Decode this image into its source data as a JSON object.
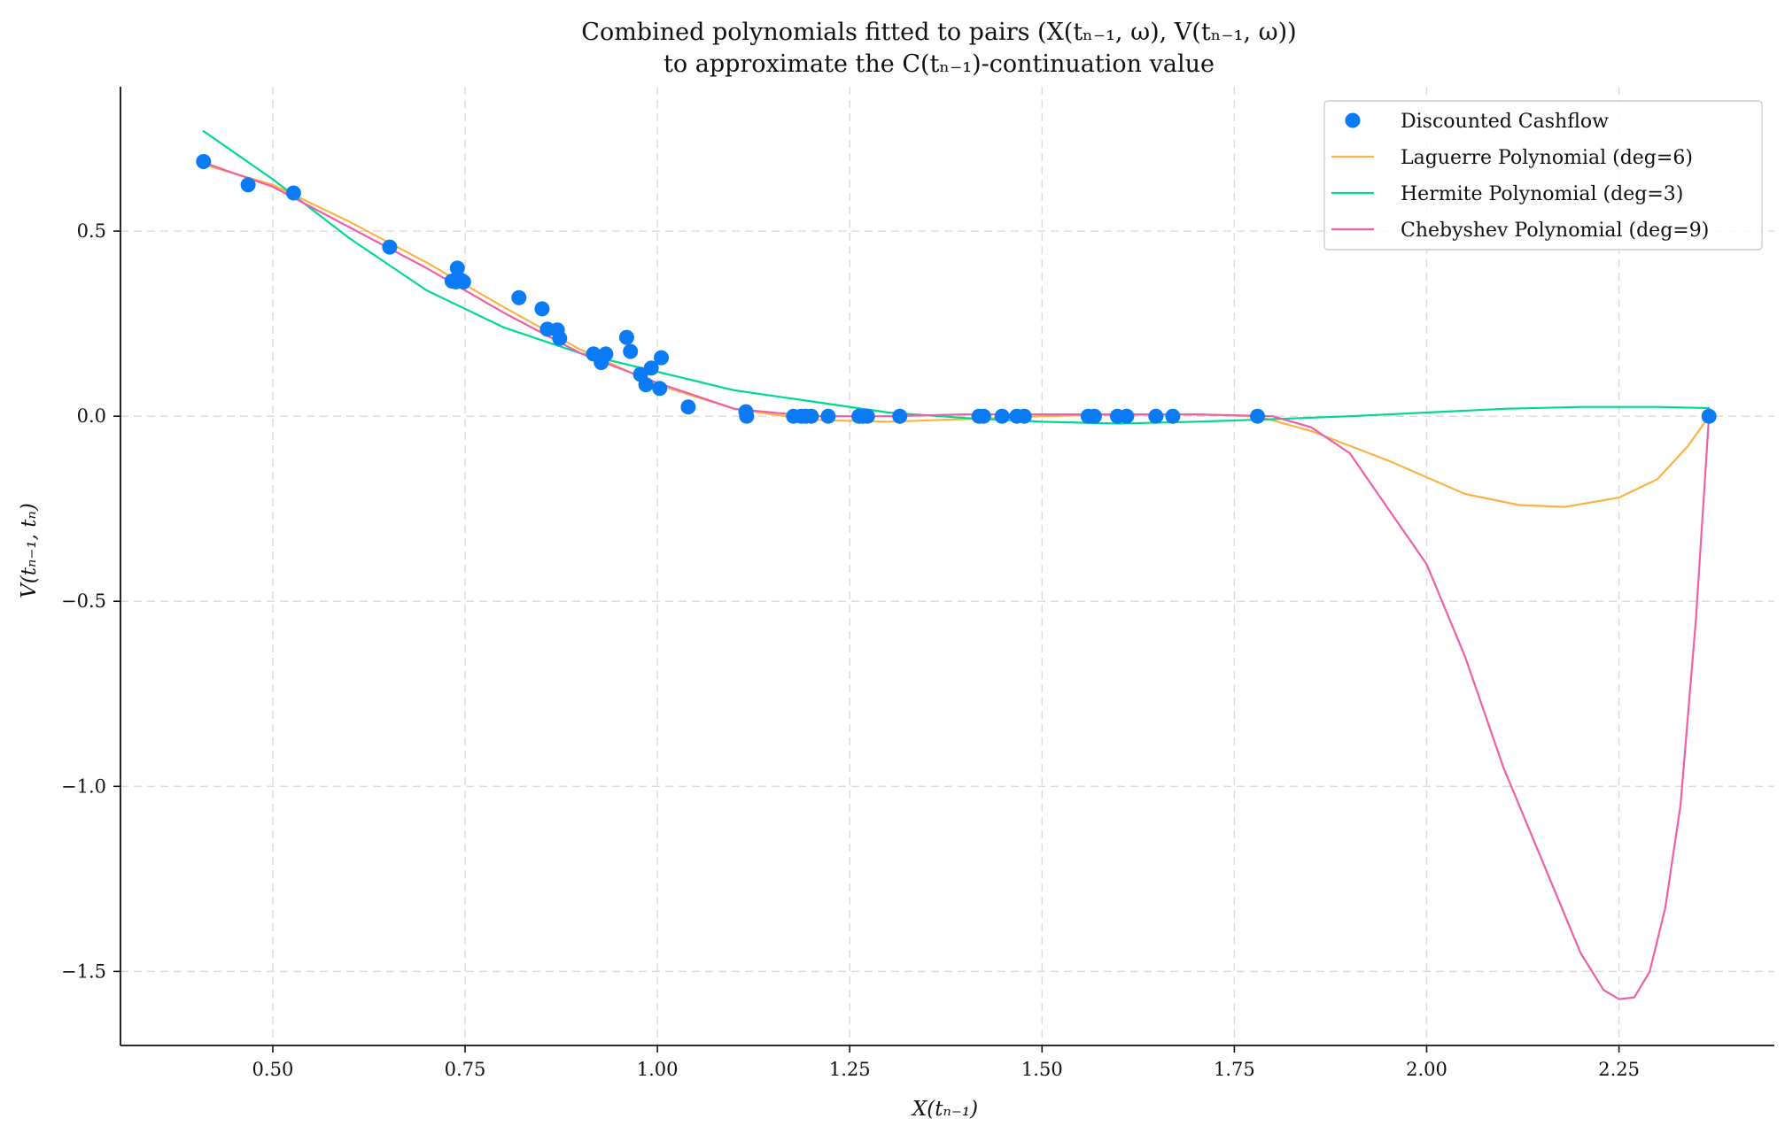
{
  "chart_data": {
    "type": "line",
    "title_lines": [
      "Combined polynomials fitted to pairs (X(tₙ₋₁, ω), V(tₙ₋₁, ω))",
      "to approximate the C(tₙ₋₁)-continuation value"
    ],
    "xlabel": "X(tₙ₋₁)",
    "ylabel": "V(tₙ₋₁, tₙ)",
    "xlim": [
      0.302,
      2.452
    ],
    "ylim": [
      -1.7,
      0.89
    ],
    "x_ticks": [
      0.5,
      0.75,
      1.0,
      1.25,
      1.5,
      1.75,
      2.0,
      2.25
    ],
    "x_tick_labels": [
      "0.50",
      "0.75",
      "1.00",
      "1.25",
      "1.50",
      "1.75",
      "2.00",
      "2.25"
    ],
    "y_ticks": [
      0.5,
      0.0,
      -0.5,
      -1.0,
      -1.5
    ],
    "y_tick_labels": [
      "0.5",
      "0.0",
      "−0.5",
      "−1.0",
      "−1.5"
    ],
    "grid": true,
    "legend_position": "top-right",
    "scatter": {
      "name": "Discounted Cashflow",
      "color": "#0a7bf5",
      "x": [
        0.41,
        0.468,
        0.527,
        0.652,
        0.733,
        0.738,
        0.74,
        0.745,
        0.748,
        0.82,
        0.85,
        0.857,
        0.87,
        0.873,
        0.917,
        0.927,
        0.933,
        0.96,
        0.965,
        0.978,
        0.985,
        0.992,
        1.003,
        1.005,
        1.04,
        1.115,
        1.116,
        1.177,
        1.187,
        1.193,
        1.2,
        1.222,
        1.262,
        1.267,
        1.273,
        1.315,
        1.418,
        1.424,
        1.448,
        1.467,
        1.477,
        1.56,
        1.568,
        1.598,
        1.61,
        1.648,
        1.67,
        1.78,
        2.367
      ],
      "y": [
        0.688,
        0.625,
        0.603,
        0.457,
        0.365,
        0.363,
        0.4,
        0.367,
        0.363,
        0.32,
        0.29,
        0.235,
        0.233,
        0.21,
        0.168,
        0.145,
        0.168,
        0.213,
        0.175,
        0.113,
        0.085,
        0.13,
        0.075,
        0.158,
        0.025,
        0.012,
        0.0,
        0.0,
        0.0,
        0.0,
        0.0,
        0.0,
        0.0,
        0.0,
        0.0,
        0.0,
        0.0,
        0.0,
        0.0,
        0.0,
        0.0,
        0.0,
        0.0,
        0.0,
        0.0,
        0.0,
        0.0,
        0.0,
        0.0
      ]
    },
    "series": [
      {
        "name": "Laguerre Polynomial (deg=6)",
        "color": "#fbb246",
        "x": [
          0.41,
          0.5,
          0.6,
          0.7,
          0.8,
          0.9,
          1.0,
          1.1,
          1.2,
          1.3,
          1.4,
          1.5,
          1.6,
          1.7,
          1.78,
          1.85,
          1.95,
          2.05,
          2.12,
          2.18,
          2.25,
          2.3,
          2.34,
          2.367
        ],
        "y": [
          0.68,
          0.625,
          0.525,
          0.415,
          0.295,
          0.18,
          0.085,
          0.02,
          -0.01,
          -0.015,
          -0.008,
          0.0,
          0.005,
          0.005,
          0.0,
          -0.04,
          -0.12,
          -0.21,
          -0.24,
          -0.245,
          -0.22,
          -0.17,
          -0.08,
          0.0
        ]
      },
      {
        "name": "Hermite Polynomial (deg=3)",
        "color": "#00d88f",
        "x": [
          0.41,
          0.5,
          0.6,
          0.7,
          0.8,
          0.9,
          1.0,
          1.1,
          1.2,
          1.3,
          1.4,
          1.5,
          1.6,
          1.7,
          1.8,
          1.9,
          2.0,
          2.1,
          2.2,
          2.3,
          2.367
        ],
        "y": [
          0.77,
          0.64,
          0.48,
          0.34,
          0.24,
          0.17,
          0.12,
          0.07,
          0.04,
          0.01,
          -0.005,
          -0.015,
          -0.02,
          -0.015,
          -0.008,
          0.0,
          0.01,
          0.02,
          0.025,
          0.025,
          0.022
        ]
      },
      {
        "name": "Chebyshev Polynomial (deg=9)",
        "color": "#ef5fa8",
        "x": [
          0.41,
          0.5,
          0.6,
          0.7,
          0.8,
          0.9,
          1.0,
          1.1,
          1.2,
          1.3,
          1.4,
          1.5,
          1.6,
          1.7,
          1.8,
          1.85,
          1.9,
          1.95,
          2.0,
          2.05,
          2.1,
          2.15,
          2.2,
          2.23,
          2.25,
          2.27,
          2.29,
          2.31,
          2.33,
          2.35,
          2.367
        ],
        "y": [
          0.685,
          0.62,
          0.51,
          0.4,
          0.28,
          0.17,
          0.09,
          0.02,
          0.0,
          0.0,
          0.005,
          0.005,
          0.005,
          0.005,
          0.0,
          -0.03,
          -0.1,
          -0.25,
          -0.4,
          -0.65,
          -0.95,
          -1.2,
          -1.45,
          -1.55,
          -1.575,
          -1.57,
          -1.5,
          -1.33,
          -1.05,
          -0.55,
          0.0
        ]
      }
    ]
  }
}
